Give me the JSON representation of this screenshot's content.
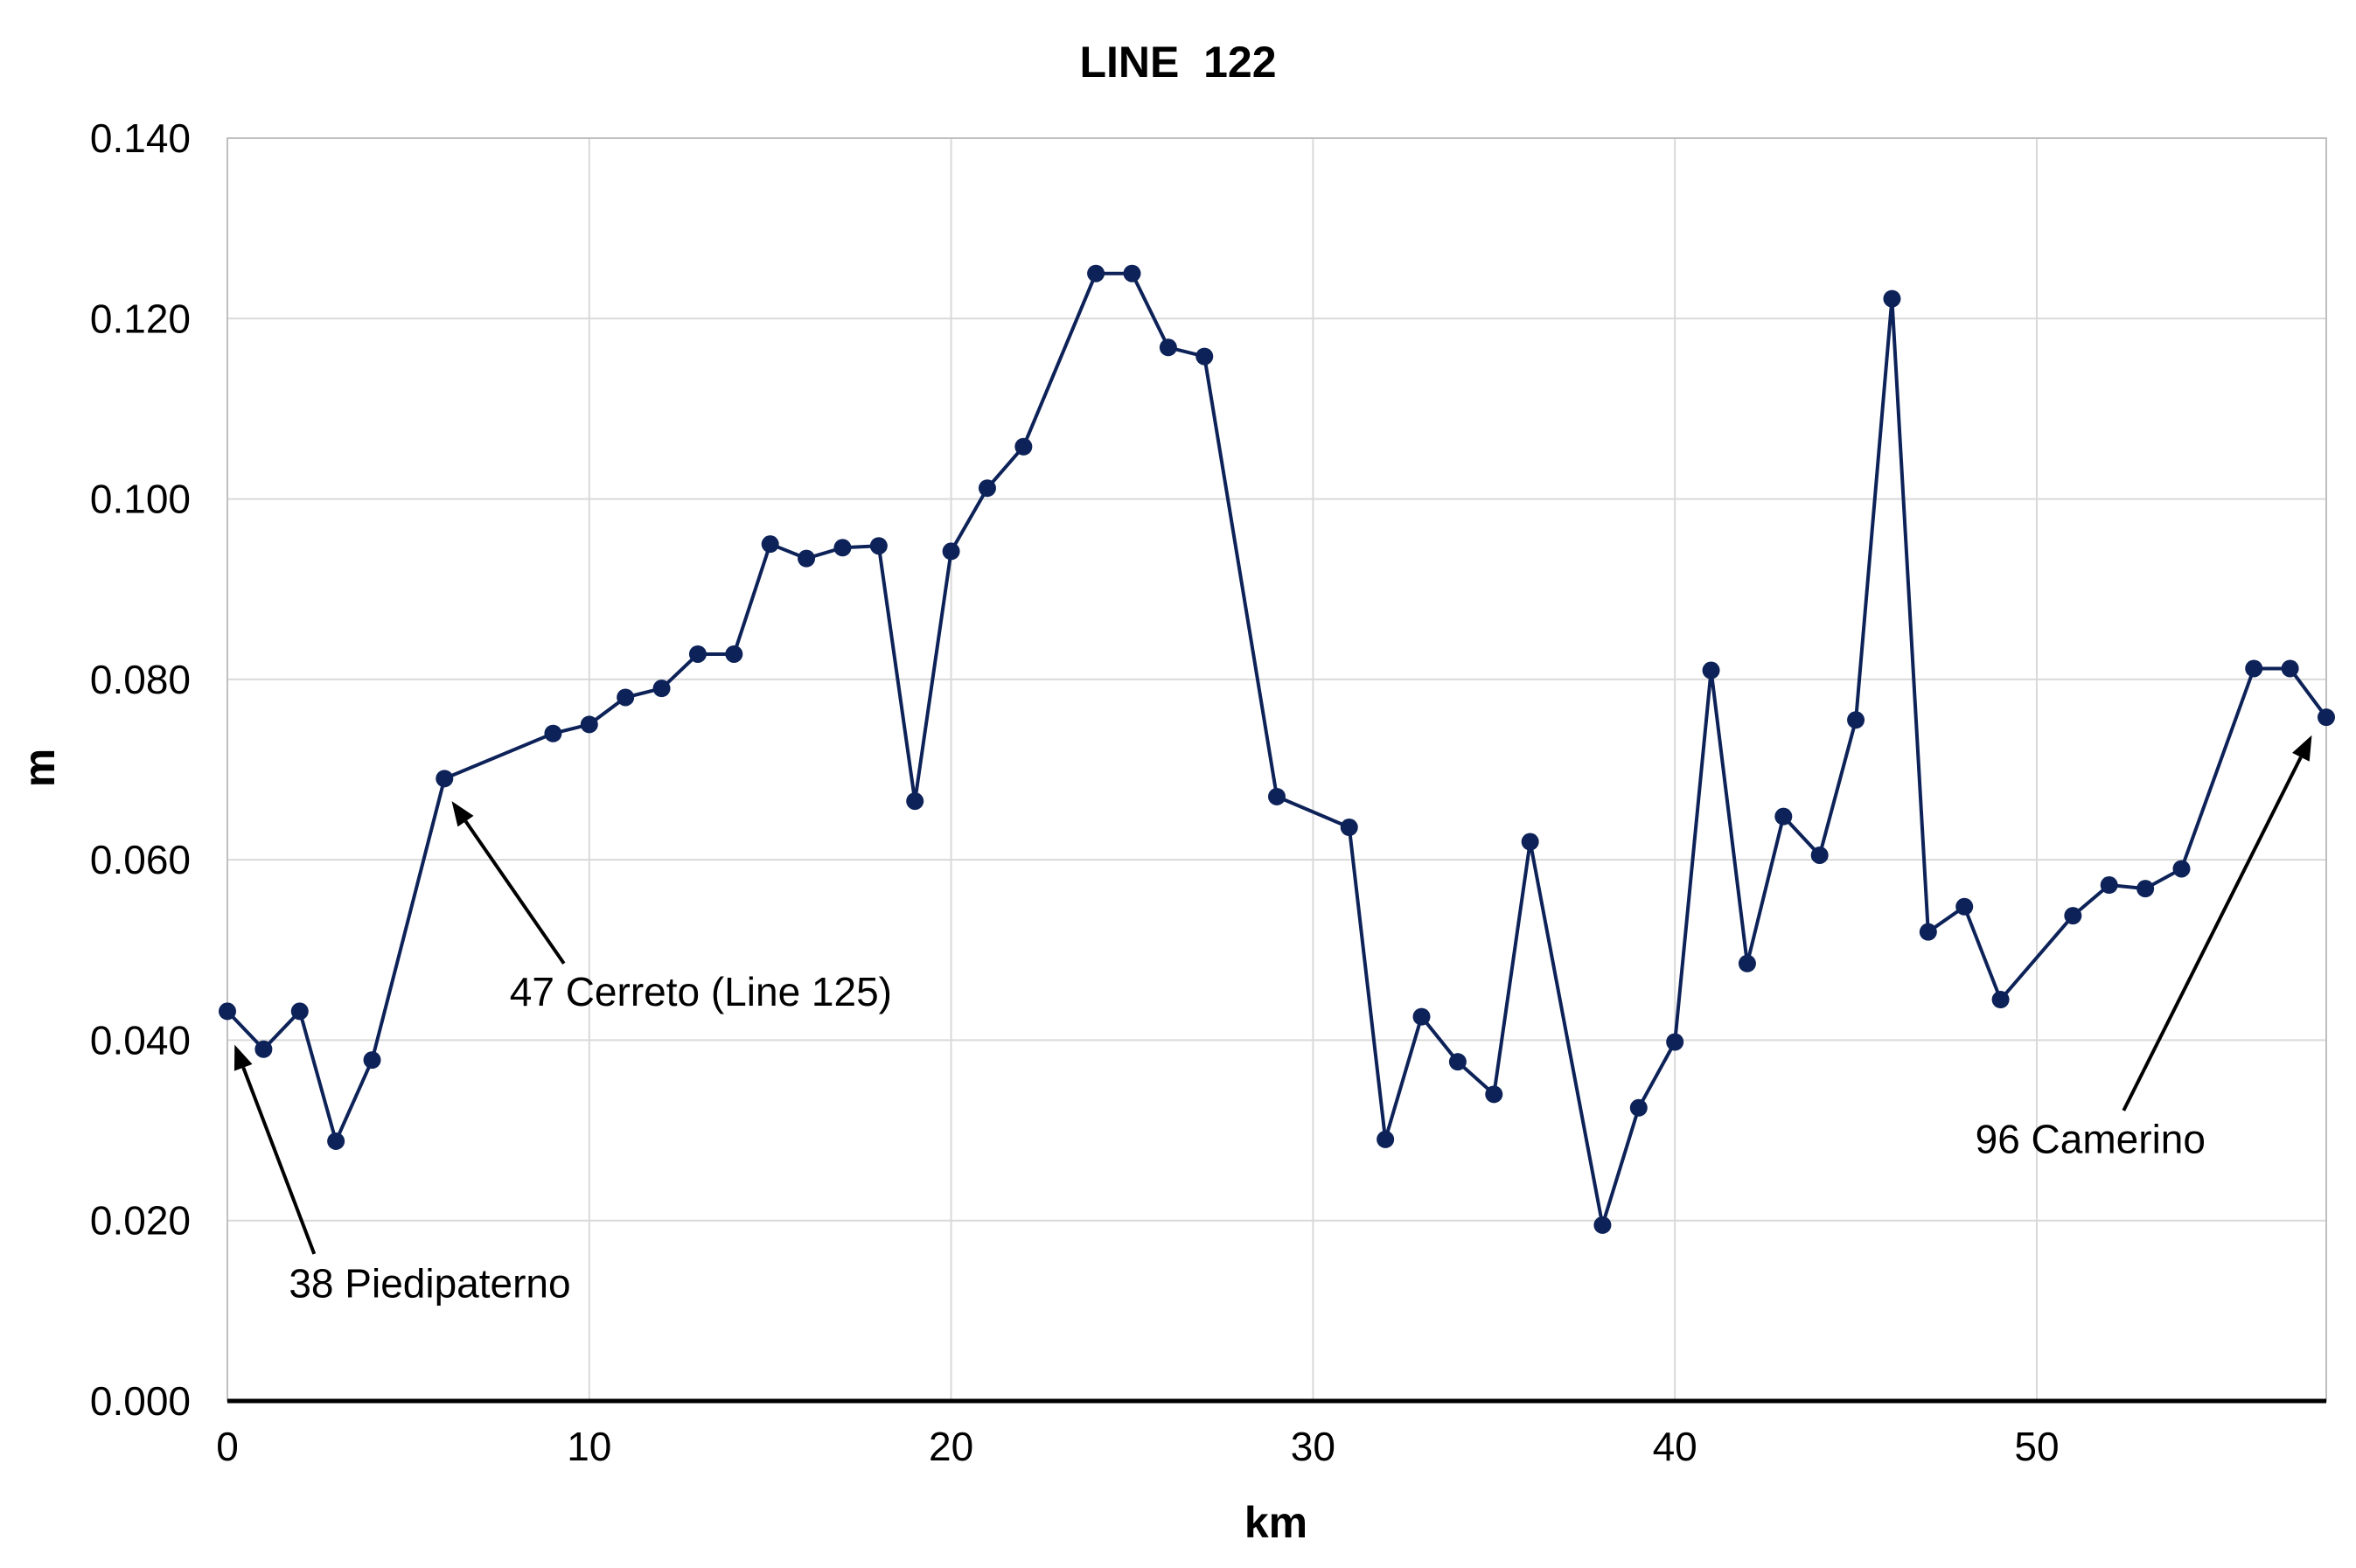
{
  "chart_data": {
    "type": "line",
    "title": "LINE  122",
    "xlabel": "km",
    "ylabel": "m",
    "xlim": [
      0,
      58
    ],
    "ylim": [
      0,
      0.14
    ],
    "x_ticks": [
      0,
      10,
      20,
      30,
      40,
      50
    ],
    "x_tick_labels": [
      "0",
      "10",
      "20",
      "30",
      "40",
      "50"
    ],
    "y_ticks": [
      0,
      0.02,
      0.04,
      0.06,
      0.08,
      0.1,
      0.12,
      0.14
    ],
    "y_tick_labels": [
      "0.000",
      "0.020",
      "0.040",
      "0.060",
      "0.080",
      "0.100",
      "0.120",
      "0.140"
    ],
    "grid": true,
    "color": "#0d2258",
    "series": [
      {
        "x": [
          0,
          1,
          2,
          3,
          4,
          6,
          9,
          10,
          11,
          12,
          13,
          14,
          15,
          16,
          17,
          18,
          19,
          20,
          21,
          22,
          24,
          25,
          26,
          27,
          29,
          31,
          32,
          33,
          34,
          35,
          36,
          38,
          39,
          40,
          41,
          42,
          43,
          44,
          45,
          46,
          47,
          48,
          49,
          51,
          52,
          53,
          54,
          56,
          57,
          58
        ],
        "y": [
          0.0432,
          0.039,
          0.0432,
          0.0288,
          0.0378,
          0.069,
          0.074,
          0.075,
          0.078,
          0.079,
          0.0828,
          0.0828,
          0.095,
          0.0934,
          0.0946,
          0.0948,
          0.0665,
          0.0942,
          0.1012,
          0.1058,
          0.125,
          0.125,
          0.1168,
          0.1158,
          0.067,
          0.0636,
          0.029,
          0.0426,
          0.0376,
          0.034,
          0.062,
          0.0195,
          0.0325,
          0.0398,
          0.081,
          0.0485,
          0.0648,
          0.0605,
          0.0755,
          0.1222,
          0.052,
          0.0548,
          0.0445,
          0.0538,
          0.0572,
          0.0568,
          0.059,
          0.0812,
          0.0812,
          0.0758
        ]
      }
    ],
    "annotations": [
      {
        "text": "38 Piedipaterno",
        "point": [
          0.2,
          0.0395
        ],
        "text_at": [
          1.7,
          0.0115
        ],
        "tail": [
          2.4,
          0.0163
        ]
      },
      {
        "text": "47 Cerreto (Line 125)",
        "point": [
          6.2,
          0.0665
        ],
        "text_at": [
          7.8,
          0.0438
        ],
        "tail": [
          9.3,
          0.0485
        ]
      },
      {
        "text": "96 Camerino",
        "point": [
          57.6,
          0.0738
        ],
        "text_at": [
          48.3,
          0.0275
        ],
        "tail": [
          52.4,
          0.0322
        ]
      }
    ]
  }
}
